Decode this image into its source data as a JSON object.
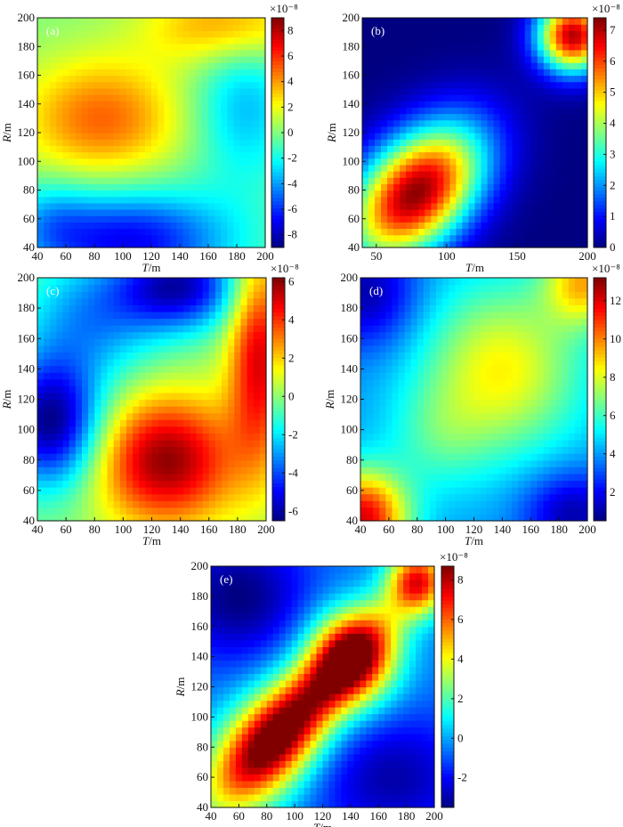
{
  "chart_data": [
    {
      "type": "heatmap",
      "panel": "(a)",
      "xlabel_italic": "T",
      "xlabel_unit": "/m",
      "ylabel_italic": "R",
      "ylabel_unit": "/m",
      "xlim": [
        40,
        200
      ],
      "ylim": [
        40,
        200
      ],
      "xticks": [
        40,
        60,
        80,
        100,
        120,
        140,
        160,
        180,
        200
      ],
      "yticks": [
        40,
        60,
        80,
        100,
        120,
        140,
        160,
        180,
        200
      ],
      "colorbar": {
        "min": -9,
        "max": 9,
        "ticks": [
          -8,
          -6,
          -4,
          -2,
          0,
          2,
          4,
          6,
          8
        ],
        "exponent_label": "×10⁻⁸"
      },
      "blobs": [
        {
          "t": 85,
          "r": 130,
          "amp": 5,
          "sx": 40,
          "sy": 30
        },
        {
          "t": 175,
          "r": 195,
          "amp": 4.5,
          "sx": 40,
          "sy": 20
        },
        {
          "t": 105,
          "r": 45,
          "amp": -7,
          "sx": 50,
          "sy": 25
        },
        {
          "t": 185,
          "r": 140,
          "amp": -3.5,
          "sx": 25,
          "sy": 40
        },
        {
          "t": 50,
          "r": 60,
          "amp": -2,
          "sx": 20,
          "sy": 20
        }
      ]
    },
    {
      "type": "heatmap",
      "panel": "(b)",
      "xlabel_italic": "T",
      "xlabel_unit": "/m",
      "ylabel_italic": "R",
      "ylabel_unit": "/m",
      "xlim": [
        40,
        200
      ],
      "ylim": [
        40,
        200
      ],
      "xticks": [
        50,
        100,
        150,
        200
      ],
      "yticks": [
        40,
        60,
        80,
        100,
        120,
        140,
        160,
        180,
        200
      ],
      "colorbar": {
        "min": 0,
        "max": 7.4,
        "ticks": [
          0,
          1,
          2,
          3,
          4,
          5,
          6,
          7
        ],
        "exponent_label": "×10⁻⁸"
      },
      "blobs": [
        {
          "t": 78,
          "r": 78,
          "amp": 7.3,
          "sx": 32,
          "sy": 32,
          "rot": 0.78,
          "elong": 1.6
        },
        {
          "t": 190,
          "r": 188,
          "amp": 7,
          "sx": 18,
          "sy": 18
        }
      ]
    },
    {
      "type": "heatmap",
      "panel": "(c)",
      "xlabel_italic": "T",
      "xlabel_unit": "/m",
      "ylabel_italic": "R",
      "ylabel_unit": "/m",
      "xlim": [
        40,
        200
      ],
      "ylim": [
        40,
        200
      ],
      "xticks": [
        40,
        60,
        80,
        100,
        120,
        140,
        160,
        180,
        200
      ],
      "yticks": [
        40,
        60,
        80,
        100,
        120,
        140,
        160,
        180,
        200
      ],
      "colorbar": {
        "min": -6.5,
        "max": 6.2,
        "ticks": [
          -6,
          -4,
          -2,
          0,
          2,
          4,
          6
        ],
        "exponent_label": "×10⁻⁸"
      },
      "blobs": [
        {
          "t": 130,
          "r": 80,
          "amp": 6,
          "sx": 35,
          "sy": 30
        },
        {
          "t": 195,
          "r": 150,
          "amp": 5,
          "sx": 15,
          "sy": 50
        },
        {
          "t": 50,
          "r": 105,
          "amp": -6.5,
          "sx": 25,
          "sy": 30
        },
        {
          "t": 140,
          "r": 195,
          "amp": -5.5,
          "sx": 30,
          "sy": 20
        },
        {
          "t": 80,
          "r": 175,
          "amp": -3,
          "sx": 35,
          "sy": 30
        }
      ]
    },
    {
      "type": "heatmap",
      "panel": "(d)",
      "xlabel_italic": "T",
      "xlabel_unit": "/m",
      "ylabel_italic": "R",
      "ylabel_unit": "/m",
      "xlim": [
        40,
        200
      ],
      "ylim": [
        40,
        200
      ],
      "xticks": [
        40,
        60,
        80,
        100,
        120,
        140,
        160,
        180,
        200
      ],
      "yticks": [
        40,
        60,
        80,
        100,
        120,
        140,
        160,
        180,
        200
      ],
      "colorbar": {
        "min": 0.5,
        "max": 13.2,
        "ticks": [
          2,
          4,
          6,
          8,
          10,
          12
        ],
        "exponent_label": "×10⁻⁸"
      },
      "base": 4,
      "blobs": [
        {
          "t": 140,
          "r": 140,
          "amp": 4.5,
          "sx": 40,
          "sy": 40
        },
        {
          "t": 42,
          "r": 42,
          "amp": 8,
          "sx": 22,
          "sy": 22
        },
        {
          "t": 198,
          "r": 198,
          "amp": 5,
          "sx": 20,
          "sy": 20
        },
        {
          "t": 190,
          "r": 45,
          "amp": -3,
          "sx": 25,
          "sy": 20
        },
        {
          "t": 45,
          "r": 190,
          "amp": -3,
          "sx": 25,
          "sy": 25
        },
        {
          "t": 95,
          "r": 95,
          "amp": 1.5,
          "sx": 25,
          "sy": 25
        }
      ]
    },
    {
      "type": "heatmap",
      "panel": "(e)",
      "xlabel_italic": "T",
      "xlabel_unit": "/m",
      "ylabel_italic": "R",
      "ylabel_unit": "/m",
      "xlim": [
        40,
        200
      ],
      "ylim": [
        40,
        200
      ],
      "xticks": [
        40,
        60,
        80,
        100,
        120,
        140,
        160,
        180,
        200
      ],
      "yticks": [
        40,
        60,
        80,
        100,
        120,
        140,
        160,
        180,
        200
      ],
      "colorbar": {
        "min": -3.5,
        "max": 8.7,
        "ticks": [
          -2,
          0,
          2,
          4,
          6,
          8
        ],
        "exponent_label": "×10⁻⁸"
      },
      "base": -0.5,
      "blobs": [
        {
          "t": 82,
          "r": 82,
          "amp": 8,
          "sx": 40,
          "sy": 22,
          "rot": 0.78
        },
        {
          "t": 142,
          "r": 140,
          "amp": 7.5,
          "sx": 22,
          "sy": 22
        },
        {
          "t": 188,
          "r": 190,
          "amp": 7,
          "sx": 15,
          "sy": 15
        },
        {
          "t": 120,
          "r": 120,
          "amp": 4,
          "sx": 60,
          "sy": 14,
          "rot": 0.78
        },
        {
          "t": 60,
          "r": 180,
          "amp": -3,
          "sx": 35,
          "sy": 30
        },
        {
          "t": 170,
          "r": 60,
          "amp": -2.5,
          "sx": 40,
          "sy": 30
        }
      ]
    }
  ]
}
